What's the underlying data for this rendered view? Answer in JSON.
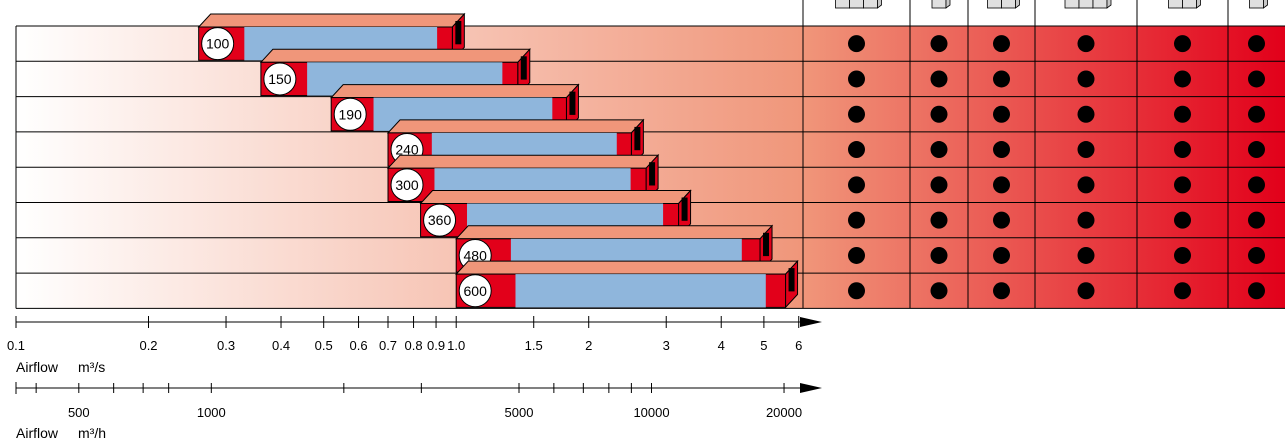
{
  "chart_data": {
    "type": "bar",
    "description_kind": "range-bar",
    "categories": [
      "100",
      "150",
      "190",
      "240",
      "300",
      "360",
      "480",
      "600"
    ],
    "series": [
      {
        "ranges_m3s": [
          {
            "size": "100",
            "min": 0.26,
            "max": 0.98
          },
          {
            "size": "150",
            "min": 0.36,
            "max": 1.38
          },
          {
            "size": "190",
            "min": 0.52,
            "max": 1.78
          },
          {
            "size": "240",
            "min": 0.7,
            "max": 2.5
          },
          {
            "size": "300",
            "min": 0.7,
            "max": 2.7
          },
          {
            "size": "360",
            "min": 0.83,
            "max": 3.2
          },
          {
            "size": "480",
            "min": 1.0,
            "max": 4.9
          },
          {
            "size": "600",
            "min": 1.0,
            "max": 5.6
          }
        ]
      }
    ],
    "columns": 6,
    "column_markers": [
      [
        true,
        true,
        true,
        true,
        true,
        true
      ],
      [
        true,
        true,
        true,
        true,
        true,
        true
      ],
      [
        true,
        true,
        true,
        true,
        true,
        true
      ],
      [
        true,
        true,
        true,
        true,
        true,
        true
      ],
      [
        true,
        true,
        true,
        true,
        true,
        true
      ],
      [
        true,
        true,
        true,
        true,
        true,
        true
      ],
      [
        true,
        true,
        true,
        true,
        true,
        true
      ],
      [
        true,
        true,
        true,
        true,
        true,
        true
      ]
    ],
    "axis_m3s": {
      "label": "Airflow",
      "unit": "m³/s",
      "scale": "log",
      "range": [
        0.1,
        6
      ],
      "tick_labels": [
        "0.1",
        "0.2",
        "0.3",
        "0.4",
        "0.5",
        "0.6",
        "0.7",
        "0.8",
        "0.9",
        "1.0",
        "1.5",
        "2",
        "3",
        "4",
        "5",
        "6"
      ],
      "tick_values": [
        0.1,
        0.2,
        0.3,
        0.4,
        0.5,
        0.6,
        0.7,
        0.8,
        0.9,
        1.0,
        1.5,
        2,
        3,
        4,
        5,
        6
      ]
    },
    "axis_m3h": {
      "label": "Airflow",
      "unit": "m³/h",
      "scale": "log",
      "minor_ticks": [
        400,
        500,
        600,
        700,
        800,
        1000,
        2000,
        3000,
        5000,
        6000,
        7000,
        8000,
        9000,
        10000,
        20000
      ],
      "tick_labels": [
        "500",
        "1000",
        "5000",
        "10000",
        "20000"
      ],
      "tick_values": [
        500,
        1000,
        5000,
        10000,
        20000
      ]
    },
    "colors": {
      "bar_fill": "#8fb6dc",
      "bar_ends": "#e2001a",
      "bar_top": "#f0967a",
      "gradient_start": "#ffffff",
      "gradient_mid": "#f0967a",
      "gradient_end": "#e2001a",
      "marker": "#000000"
    },
    "legend": "none",
    "grid": false
  }
}
